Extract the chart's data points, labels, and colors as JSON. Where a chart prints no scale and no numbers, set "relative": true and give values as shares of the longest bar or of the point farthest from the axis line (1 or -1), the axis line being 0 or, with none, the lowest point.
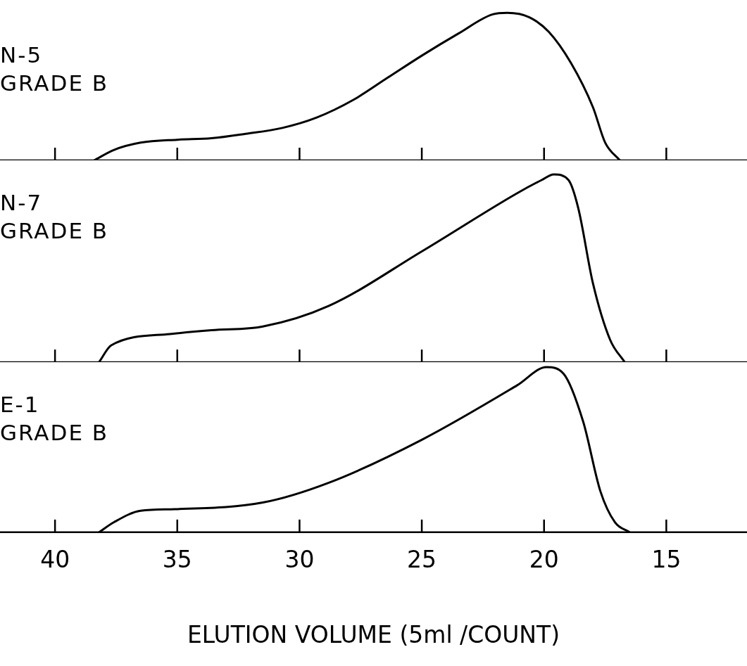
{
  "chart_data": [
    {
      "type": "line",
      "title": "N-5",
      "subtitle": "GRADE B",
      "relative": true,
      "xlim": [
        42.25,
        11.7
      ],
      "xticks": [
        40,
        35,
        30,
        25,
        20,
        15
      ],
      "tick_labels": false,
      "grid": false,
      "legend": false,
      "marker": "none",
      "line_style": "solid",
      "series": [
        {
          "color": "#000000",
          "x": [
            38.4,
            37.6,
            36.5,
            35.0,
            33.6,
            32.2,
            30.7,
            29.3,
            27.8,
            26.4,
            25.0,
            23.5,
            22.1,
            21.5,
            20.6,
            19.8,
            18.9,
            18.0,
            17.5,
            16.9
          ],
          "values": [
            0,
            0.07,
            0.12,
            0.14,
            0.15,
            0.18,
            0.22,
            0.29,
            0.41,
            0.56,
            0.71,
            0.86,
            0.99,
            1.0,
            0.97,
            0.87,
            0.66,
            0.36,
            0.12,
            0
          ]
        }
      ]
    },
    {
      "type": "line",
      "title": "N-7",
      "subtitle": "GRADE B",
      "relative": true,
      "xlim": [
        42.25,
        11.7
      ],
      "xticks": [
        40,
        35,
        30,
        25,
        20,
        15
      ],
      "tick_labels": false,
      "grid": false,
      "legend": false,
      "marker": "none",
      "line_style": "solid",
      "series": [
        {
          "color": "#000000",
          "x": [
            38.2,
            37.7,
            35.3,
            33.6,
            31.5,
            28.8,
            25.0,
            21.1,
            20.1,
            19.6,
            19.0,
            18.6,
            18.0,
            17.3,
            16.7
          ],
          "values": [
            0,
            0.09,
            0.15,
            0.17,
            0.19,
            0.3,
            0.59,
            0.9,
            0.97,
            1.0,
            0.97,
            0.82,
            0.42,
            0.12,
            0
          ]
        }
      ]
    },
    {
      "type": "line",
      "title": "E-1",
      "subtitle": "GRADE B",
      "xlabel": "ELUTION VOLUME (5ml /COUNT)",
      "relative": true,
      "xlim": [
        42.25,
        11.7
      ],
      "xticks": [
        40,
        35,
        30,
        25,
        20,
        15
      ],
      "tick_labels": "x",
      "grid": false,
      "legend": false,
      "marker": "none",
      "line_style": "solid",
      "series": [
        {
          "color": "#000000",
          "x": [
            38.2,
            37.6,
            36.5,
            35.1,
            31.5,
            28.8,
            25.0,
            21.1,
            19.9,
            19.2,
            18.4,
            17.7,
            17.1,
            16.5
          ],
          "values": [
            0,
            0.06,
            0.13,
            0.14,
            0.18,
            0.3,
            0.56,
            0.89,
            1.0,
            0.96,
            0.67,
            0.25,
            0.06,
            0
          ]
        }
      ]
    }
  ]
}
